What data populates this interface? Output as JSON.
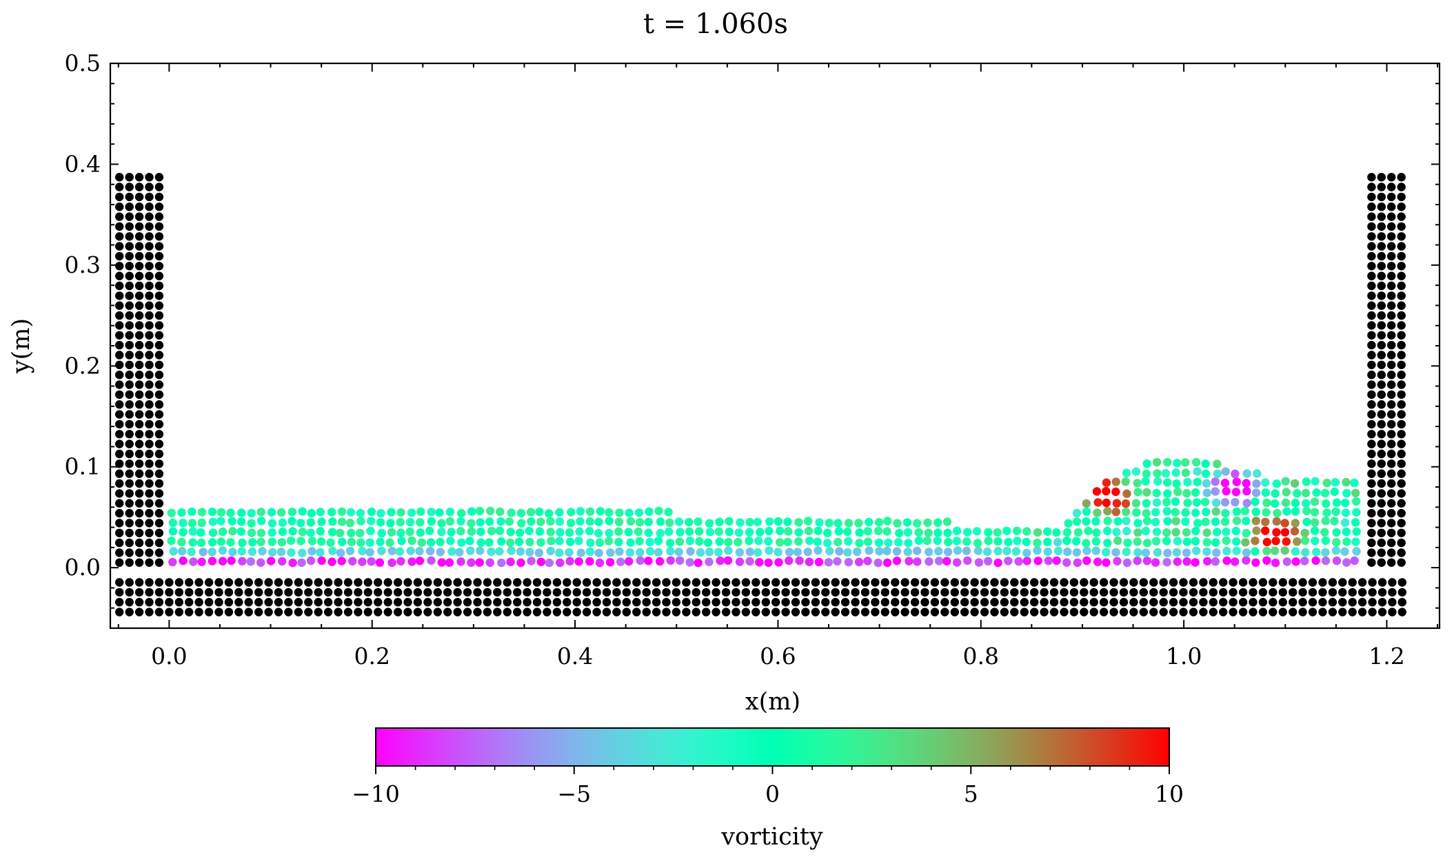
{
  "chart_data": {
    "type": "scatter",
    "title": "t = 1.060s",
    "xlabel": "x(m)",
    "ylabel": "y(m)",
    "xlim": [
      -0.058,
      1.252
    ],
    "ylim": [
      -0.06,
      0.5
    ],
    "xticks": [
      "0.0",
      "0.2",
      "0.4",
      "0.6",
      "0.8",
      "1.0",
      "1.2"
    ],
    "yticks": [
      "0.0",
      "0.1",
      "0.2",
      "0.3",
      "0.4",
      "0.5"
    ],
    "grid": false,
    "particle_spacing": 0.0098,
    "boundary_particles": {
      "color": "#000000",
      "left_wall": {
        "x": [
          -0.049,
          -0.005
        ],
        "y": [
          -0.044,
          0.396
        ]
      },
      "right_wall": {
        "x": [
          1.185,
          1.224
        ],
        "y": [
          -0.044,
          0.396
        ]
      },
      "floor": {
        "x": [
          -0.049,
          1.224
        ],
        "y": [
          -0.044,
          -0.005
        ]
      }
    },
    "fluid_particles": {
      "description": "colored by vorticity",
      "x_range": [
        0.003,
        1.178
      ],
      "surface_profile": [
        {
          "x": 0.0,
          "y": 0.062
        },
        {
          "x": 0.2,
          "y": 0.062
        },
        {
          "x": 0.4,
          "y": 0.058
        },
        {
          "x": 0.6,
          "y": 0.052
        },
        {
          "x": 0.8,
          "y": 0.044
        },
        {
          "x": 0.88,
          "y": 0.045
        },
        {
          "x": 0.93,
          "y": 0.09
        },
        {
          "x": 0.98,
          "y": 0.112
        },
        {
          "x": 1.03,
          "y": 0.105
        },
        {
          "x": 1.1,
          "y": 0.088
        },
        {
          "x": 1.178,
          "y": 0.085
        }
      ],
      "bottom_layer_vorticity": -9,
      "bulk_vorticity": 0.5,
      "features": [
        {
          "name": "positive vortex crest",
          "x": 0.925,
          "y": 0.072,
          "vorticity": 10
        },
        {
          "name": "negative vortex",
          "x": 1.05,
          "y": 0.08,
          "vorticity": -10
        },
        {
          "name": "positive vortex core",
          "x": 1.09,
          "y": 0.032,
          "vorticity": 10
        }
      ]
    },
    "colorbar": {
      "label": "vorticity",
      "range": [
        -10,
        10
      ],
      "ticks": [
        "−10",
        "−5",
        "0",
        "5",
        "10"
      ],
      "colormap": "rainbow",
      "colors": [
        "#8000ff",
        "#1996f3",
        "#4df3ce",
        "#b2f396",
        "#ff964f",
        "#ff0000"
      ]
    }
  }
}
